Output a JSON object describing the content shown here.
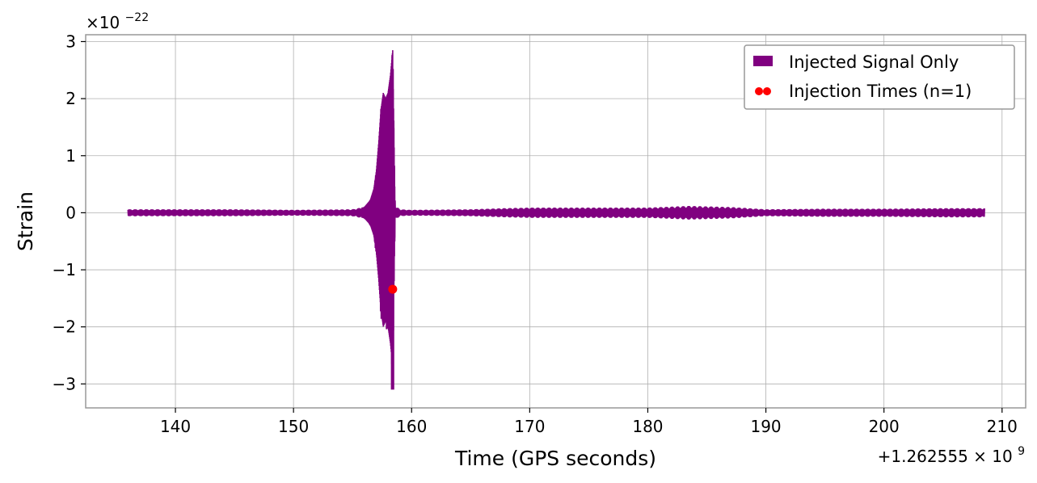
{
  "chart_data": {
    "type": "line",
    "title": "",
    "xlabel": "Time (GPS seconds)",
    "ylabel": "Strain",
    "x_offset_label": {
      "base": "+1.262555 × 10",
      "exp": "9"
    },
    "y_scale_label": {
      "base": "×10",
      "exp": "−22"
    },
    "xlim": [
      132.4,
      212
    ],
    "ylim": [
      -3.42,
      3.12
    ],
    "xticks": [
      140,
      150,
      160,
      170,
      180,
      190,
      200,
      210
    ],
    "xtick_labels": [
      "140",
      "150",
      "160",
      "170",
      "180",
      "190",
      "200",
      "210"
    ],
    "yticks": [
      3,
      2,
      1,
      0,
      -1,
      -2,
      -3
    ],
    "ytick_labels": [
      "3",
      "2",
      "1",
      "0",
      "−1",
      "−2",
      "−3"
    ],
    "grid": true,
    "legend_position": "top-right",
    "series": [
      {
        "name": "Injected Signal Only",
        "kind": "line",
        "color": "#800080",
        "x_range": [
          136,
          208.5
        ],
        "baseline_envelope": 0.07,
        "envelope_points": [
          [
            136,
            0.06
          ],
          [
            140,
            0.06
          ],
          [
            145,
            0.06
          ],
          [
            150,
            0.05
          ],
          [
            155,
            0.06
          ],
          [
            156,
            0.1
          ],
          [
            156.5,
            0.22
          ],
          [
            156.8,
            0.42
          ],
          [
            157.0,
            0.7
          ],
          [
            157.2,
            1.2
          ],
          [
            157.4,
            1.8
          ],
          [
            157.6,
            2.1
          ],
          [
            157.8,
            2.0
          ],
          [
            158.0,
            2.1
          ],
          [
            158.2,
            2.4
          ],
          [
            158.4,
            2.85
          ],
          [
            158.45,
            -3.1
          ],
          [
            158.6,
            0.12
          ],
          [
            159,
            0.06
          ],
          [
            160,
            0.05
          ],
          [
            165,
            0.06
          ],
          [
            168,
            0.08
          ],
          [
            170,
            0.09
          ],
          [
            175,
            0.09
          ],
          [
            180,
            0.09
          ],
          [
            183.5,
            0.12
          ],
          [
            187,
            0.1
          ],
          [
            190,
            0.06
          ],
          [
            195,
            0.07
          ],
          [
            200,
            0.07
          ],
          [
            205,
            0.08
          ],
          [
            208.5,
            0.08
          ]
        ]
      },
      {
        "name": "Injection Times (n=1)",
        "kind": "scatter",
        "color": "#ff0000",
        "points": [
          {
            "x": 158.4,
            "y": -1.34
          }
        ]
      }
    ]
  }
}
